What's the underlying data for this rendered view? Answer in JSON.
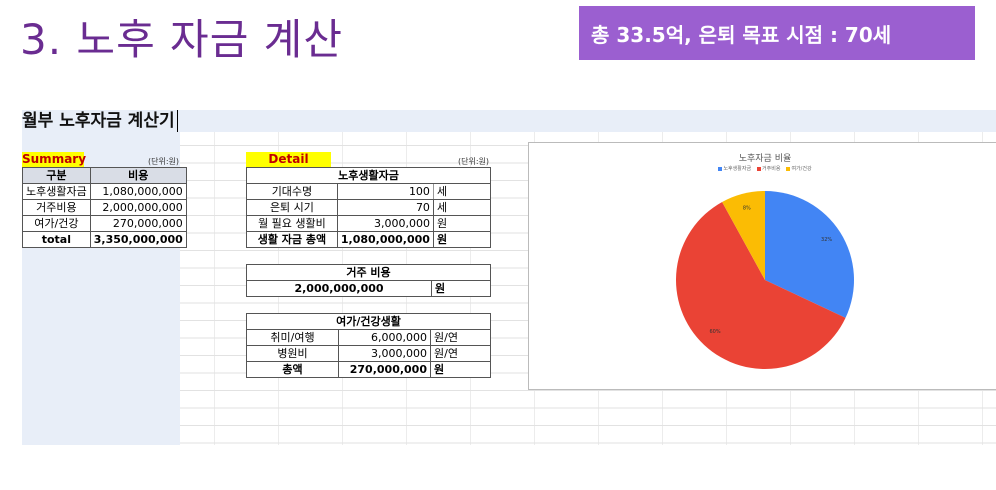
{
  "slide": {
    "title": "3. 노후 자금 계산",
    "banner": "총 33.5억, 은퇴 목표 시점  : 70세"
  },
  "sheet": {
    "title": "월부 노후자금 계산기"
  },
  "summary": {
    "tag": "Summary",
    "unit": "(단위:원)",
    "headers": [
      "구분",
      "비용"
    ],
    "rows": [
      {
        "label": "노후생활자금",
        "value": "1,080,000,000"
      },
      {
        "label": "거주비용",
        "value": "2,000,000,000"
      },
      {
        "label": "여가/건강",
        "value": "270,000,000"
      },
      {
        "label": "total",
        "value": "3,350,000,000"
      }
    ]
  },
  "detail": {
    "tag": "Detail",
    "unit": "(단위:원)",
    "living": {
      "header": "노후생활자금",
      "rows": [
        {
          "label": "기대수명",
          "value": "100",
          "unit": "세"
        },
        {
          "label": "은퇴 시기",
          "value": "70",
          "unit": "세"
        },
        {
          "label": "월 필요 생활비",
          "value": "3,000,000",
          "unit": "원"
        },
        {
          "label": "생활 자금 총액",
          "value": "1,080,000,000",
          "unit": "원"
        }
      ]
    },
    "housing": {
      "header": "거주 비용",
      "value": "2,000,000,000",
      "unit": "원"
    },
    "leisure": {
      "header": "여가/건강생활",
      "rows": [
        {
          "label": "취미/여행",
          "value": "6,000,000",
          "unit": "원/연"
        },
        {
          "label": "병원비",
          "value": "3,000,000",
          "unit": "원/연"
        },
        {
          "label": "총액",
          "value": "270,000,000",
          "unit": "원"
        }
      ]
    }
  },
  "chart_data": {
    "type": "pie",
    "title": "노후자금 비율",
    "categories": [
      "노후생활자금",
      "거주비용",
      "여가/건강"
    ],
    "values": [
      32,
      60,
      8
    ],
    "labels": [
      "32%",
      "60%",
      "8%"
    ],
    "colors": [
      "#4285f4",
      "#ea4335",
      "#fbbc04"
    ],
    "legend": "top"
  }
}
